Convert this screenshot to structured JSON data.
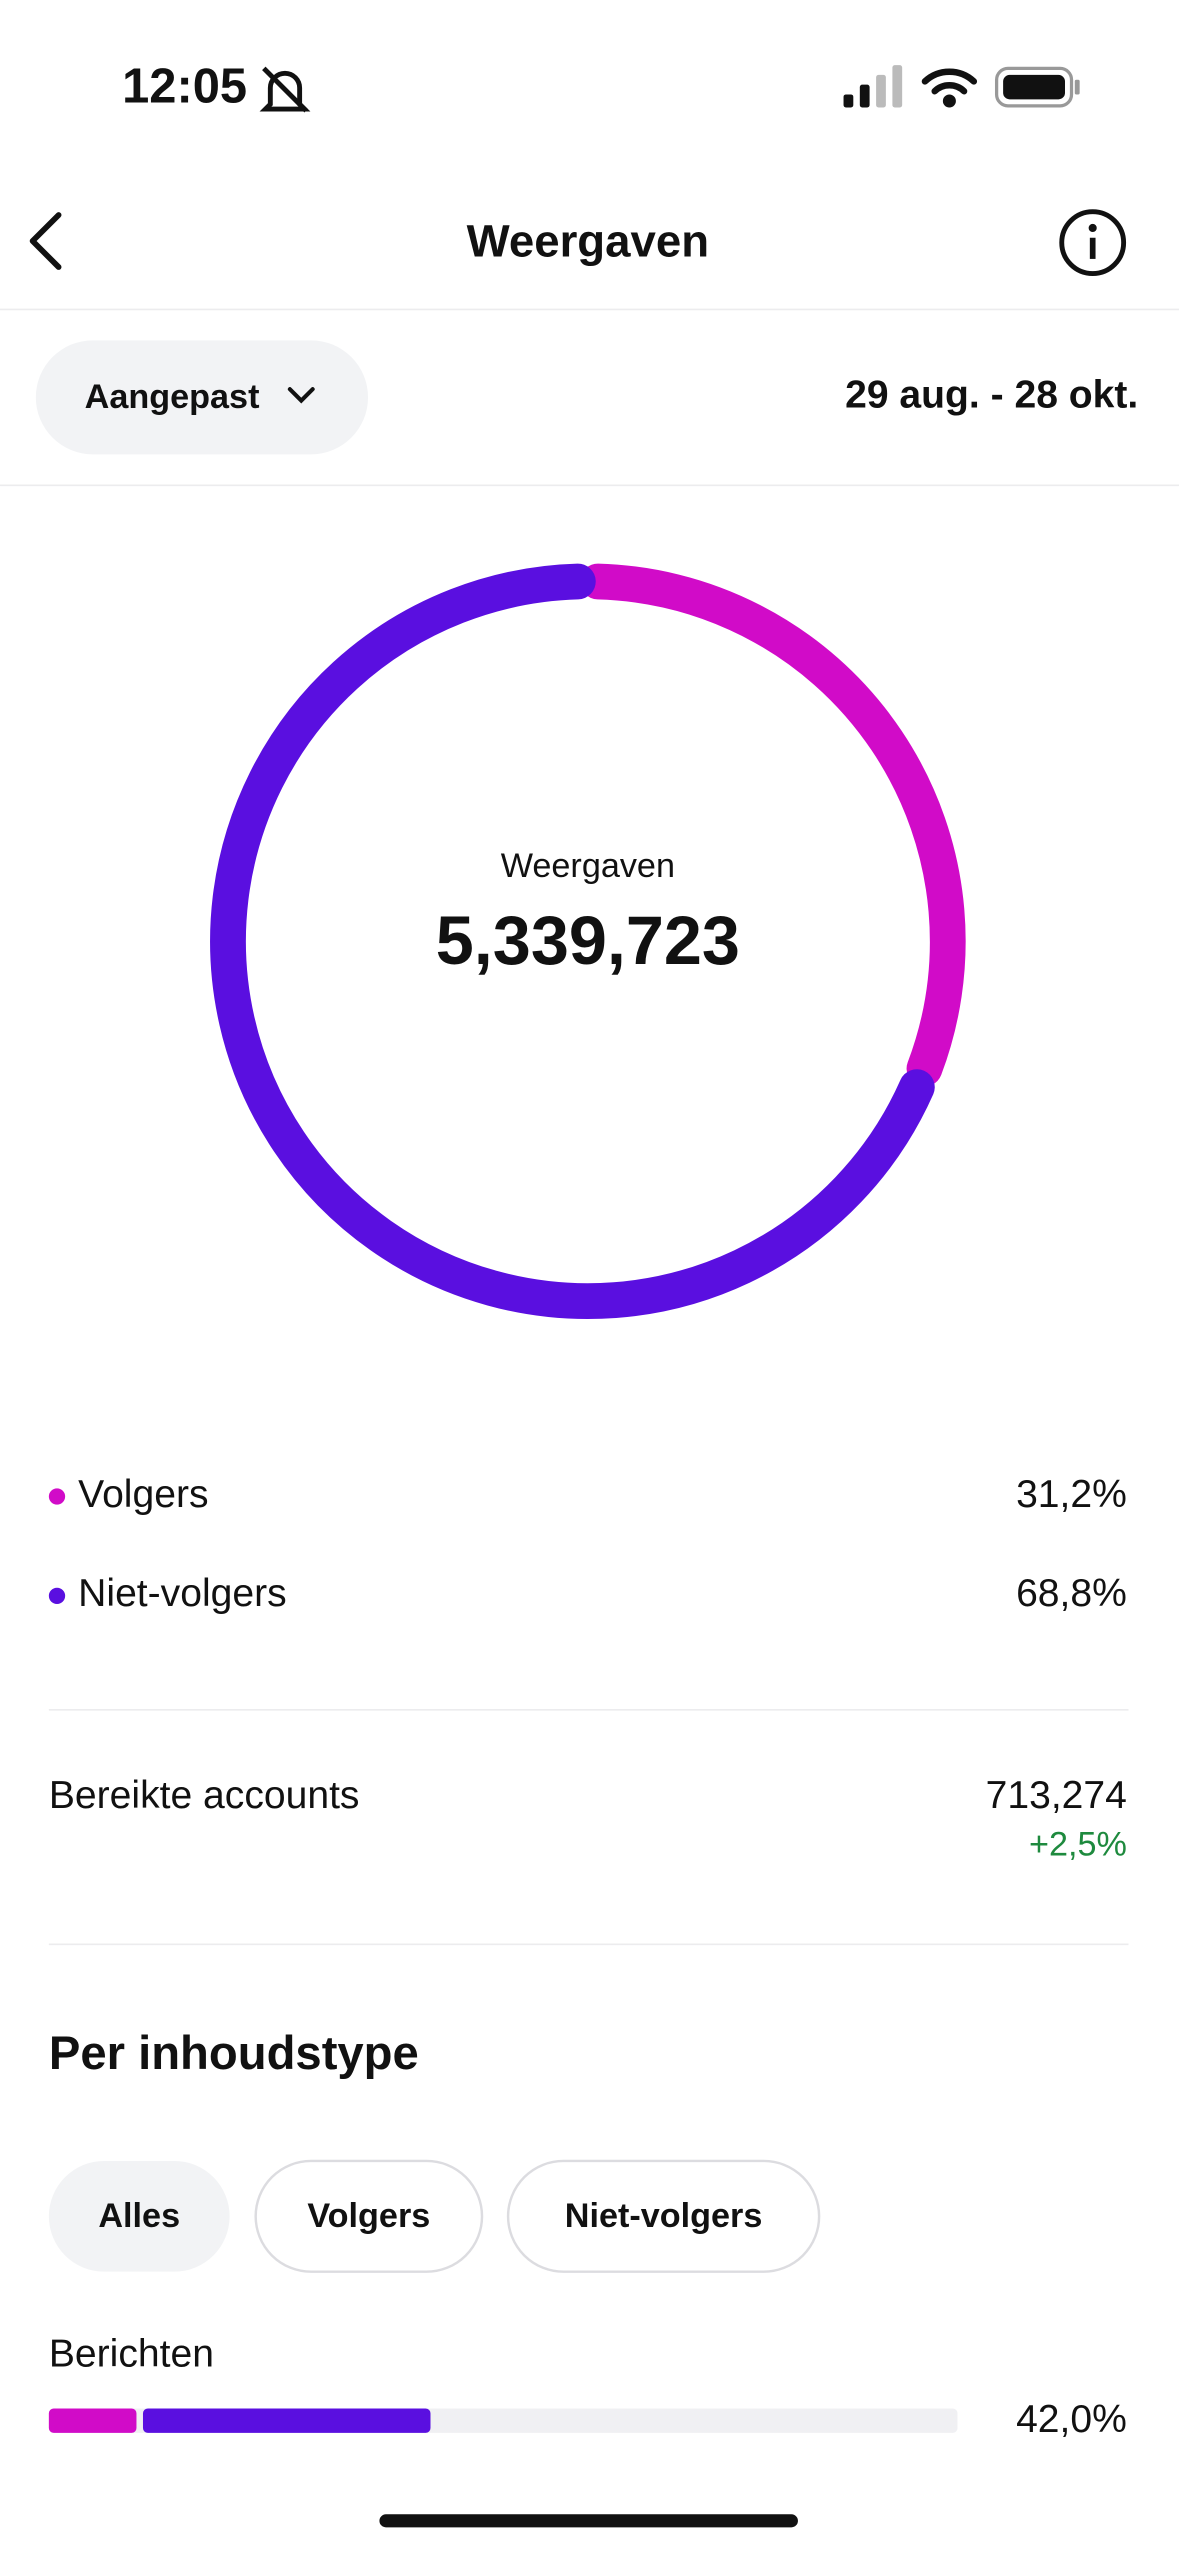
{
  "status": {
    "time": "12:05"
  },
  "header": {
    "title": "Weergaven"
  },
  "filter": {
    "label": "Aangepast",
    "range": "29 aug. - 28 okt."
  },
  "chart_data": {
    "type": "donut",
    "center_label": "Weergaven",
    "center_value": "5,339,723",
    "categories": [
      "Volgers",
      "Niet-volgers"
    ],
    "values": [
      31.2,
      68.8
    ],
    "value_labels": [
      "31,2%",
      "68,8%"
    ],
    "colors": [
      "#d10bc8",
      "#5a0fe0"
    ]
  },
  "reach": {
    "label": "Bereikte accounts",
    "value": "713,274",
    "change": "+2,5%"
  },
  "content": {
    "title": "Per inhoudstype",
    "tabs": [
      "Alles",
      "Volgers",
      "Niet-volgers"
    ],
    "xlim": [
      0,
      100
    ],
    "rows": [
      {
        "label": "Berichten",
        "segments": [
          10,
          32
        ],
        "value": 42.0,
        "value_label": "42,0%"
      }
    ]
  }
}
